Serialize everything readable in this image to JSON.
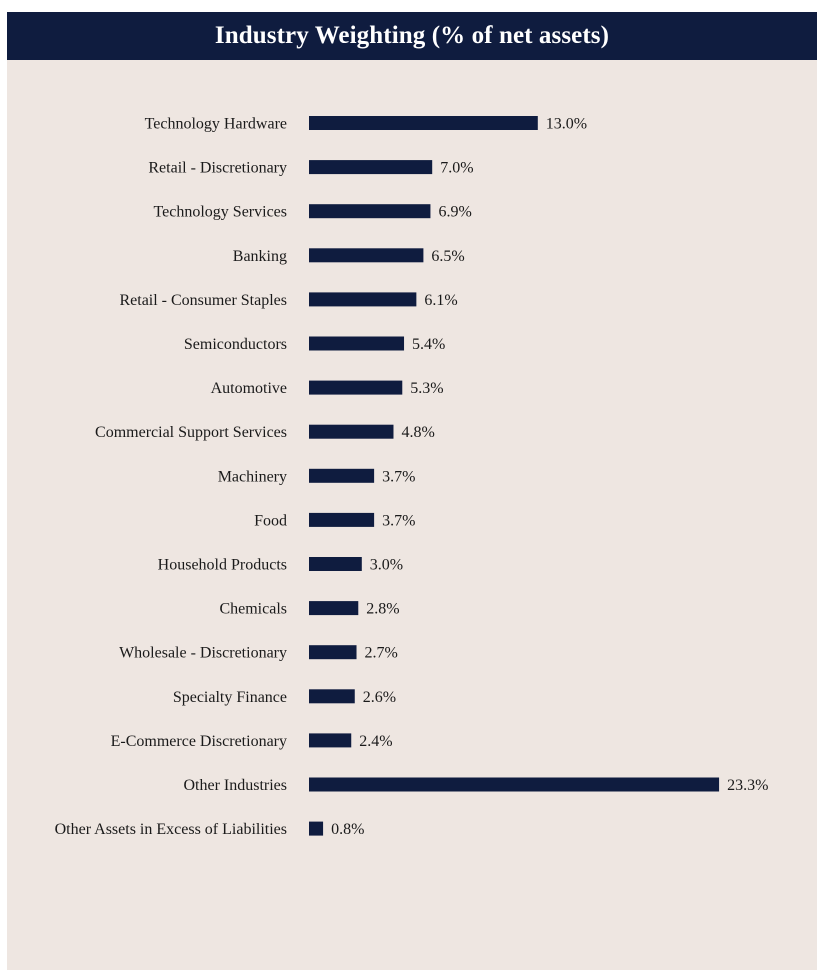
{
  "colors": {
    "header_bg": "#0f1c3f",
    "panel_bg": "#eee6e1",
    "bar": "#0f1c3f"
  },
  "chart_data": {
    "type": "bar",
    "orientation": "horizontal",
    "title": "Industry Weighting (% of net assets)",
    "value_suffix": "%",
    "grid": false,
    "categories": [
      "Technology Hardware",
      "Retail - Discretionary",
      "Technology Services",
      "Banking",
      "Retail - Consumer Staples",
      "Semiconductors",
      "Automotive",
      "Commercial Support Services",
      "Machinery",
      "Food",
      "Household Products",
      "Chemicals",
      "Wholesale - Discretionary",
      "Specialty Finance",
      "E-Commerce Discretionary",
      "Other Industries",
      "Other Assets in Excess of Liabilities"
    ],
    "values": [
      13.0,
      7.0,
      6.9,
      6.5,
      6.1,
      5.4,
      5.3,
      4.8,
      3.7,
      3.7,
      3.0,
      2.8,
      2.7,
      2.6,
      2.4,
      23.3,
      0.8
    ],
    "labels": [
      "13.0%",
      "7.0%",
      "6.9%",
      "6.5%",
      "6.1%",
      "5.4%",
      "5.3%",
      "4.8%",
      "3.7%",
      "3.7%",
      "3.0%",
      "2.8%",
      "2.7%",
      "2.6%",
      "2.4%",
      "23.3%",
      "0.8%"
    ]
  }
}
